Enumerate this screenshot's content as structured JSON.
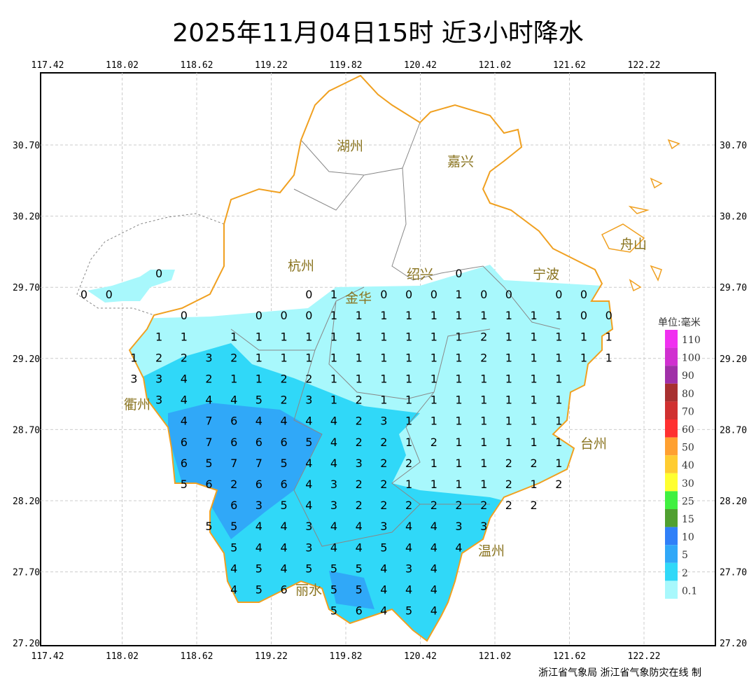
{
  "title": "2025年11月04日15时  近3小时降水",
  "footer": "浙江省气象局 浙江省气象防灾在线 制",
  "lon_ticks": [
    "117.42",
    "118.02",
    "118.62",
    "119.22",
    "119.82",
    "120.42",
    "121.02",
    "121.62",
    "122.22"
  ],
  "lat_ticks": [
    "30.70",
    "30.20",
    "29.70",
    "29.20",
    "28.70",
    "28.20",
    "27.70",
    "27.20"
  ],
  "legend": {
    "unit": "单位:毫米",
    "levels": [
      {
        "label": "110",
        "color": "#f030f0"
      },
      {
        "label": "100",
        "color": "#d030d0"
      },
      {
        "label": "90",
        "color": "#a030a8"
      },
      {
        "label": "80",
        "color": "#a83030"
      },
      {
        "label": "70",
        "color": "#d03030"
      },
      {
        "label": "60",
        "color": "#ff3030"
      },
      {
        "label": "50",
        "color": "#ffa030"
      },
      {
        "label": "40",
        "color": "#ffcc30"
      },
      {
        "label": "30",
        "color": "#ffff30"
      },
      {
        "label": "25",
        "color": "#40f040"
      },
      {
        "label": "15",
        "color": "#50a030"
      },
      {
        "label": "10",
        "color": "#3080f8"
      },
      {
        "label": "5",
        "color": "#30a8f8"
      },
      {
        "label": "2",
        "color": "#30d8f8"
      },
      {
        "label": "0.1",
        "color": "#a8f8fc"
      }
    ]
  },
  "cities": [
    "湖州",
    "嘉兴",
    "杭州",
    "绍兴",
    "宁波",
    "舟山",
    "衢州",
    "金华",
    "台州",
    "丽水",
    "温州"
  ],
  "grid_values": [
    [
      null,
      null,
      null,
      0,
      null,
      null,
      null,
      null,
      null,
      null,
      null,
      null,
      null,
      null,
      null,
      0,
      null,
      null,
      null,
      null,
      null,
      null
    ],
    [
      0,
      0,
      null,
      null,
      null,
      null,
      null,
      null,
      null,
      0,
      1,
      null,
      0,
      0,
      0,
      1,
      0,
      0,
      null,
      0,
      0,
      null
    ],
    [
      null,
      null,
      null,
      null,
      0,
      null,
      null,
      0,
      0,
      0,
      1,
      1,
      1,
      1,
      1,
      1,
      1,
      1,
      1,
      1,
      0,
      0
    ],
    [
      null,
      null,
      null,
      1,
      1,
      null,
      1,
      1,
      1,
      1,
      1,
      1,
      1,
      1,
      1,
      1,
      2,
      1,
      1,
      1,
      1,
      1
    ],
    [
      null,
      null,
      1,
      2,
      2,
      3,
      2,
      1,
      1,
      1,
      1,
      1,
      1,
      1,
      1,
      1,
      2,
      1,
      1,
      1,
      1,
      1
    ],
    [
      null,
      null,
      3,
      3,
      4,
      2,
      1,
      1,
      2,
      2,
      1,
      1,
      1,
      1,
      1,
      1,
      1,
      1,
      1,
      1,
      null,
      null
    ],
    [
      null,
      null,
      null,
      3,
      4,
      4,
      4,
      5,
      2,
      3,
      1,
      2,
      1,
      1,
      1,
      1,
      1,
      1,
      1,
      1,
      null,
      null
    ],
    [
      null,
      null,
      null,
      null,
      4,
      7,
      6,
      4,
      4,
      4,
      4,
      2,
      3,
      1,
      1,
      1,
      1,
      1,
      1,
      1,
      null,
      null
    ],
    [
      null,
      null,
      null,
      null,
      6,
      7,
      6,
      6,
      6,
      5,
      4,
      2,
      2,
      1,
      2,
      1,
      1,
      1,
      1,
      1,
      null,
      null
    ],
    [
      null,
      null,
      null,
      null,
      6,
      5,
      7,
      7,
      5,
      4,
      4,
      3,
      2,
      2,
      1,
      1,
      1,
      2,
      2,
      1,
      null,
      null
    ],
    [
      null,
      null,
      null,
      null,
      5,
      6,
      2,
      6,
      6,
      4,
      3,
      2,
      2,
      1,
      1,
      1,
      1,
      2,
      1,
      2,
      null,
      null
    ],
    [
      null,
      null,
      null,
      null,
      null,
      null,
      6,
      3,
      5,
      4,
      3,
      2,
      2,
      2,
      2,
      2,
      2,
      2,
      2,
      null,
      null,
      null
    ],
    [
      null,
      null,
      null,
      null,
      null,
      5,
      5,
      4,
      4,
      3,
      4,
      4,
      3,
      4,
      4,
      3,
      3,
      null,
      null,
      null,
      null,
      null
    ],
    [
      null,
      null,
      null,
      null,
      null,
      null,
      5,
      4,
      4,
      3,
      4,
      4,
      5,
      4,
      4,
      4,
      null,
      null,
      null,
      null,
      null,
      null
    ],
    [
      null,
      null,
      null,
      null,
      null,
      null,
      4,
      5,
      4,
      5,
      5,
      5,
      4,
      3,
      4,
      null,
      null,
      null,
      null,
      null,
      null,
      null
    ],
    [
      null,
      null,
      null,
      null,
      null,
      null,
      4,
      5,
      6,
      null,
      5,
      5,
      4,
      4,
      4,
      null,
      null,
      null,
      null,
      null,
      null,
      null
    ],
    [
      null,
      null,
      null,
      null,
      null,
      null,
      null,
      null,
      null,
      null,
      5,
      6,
      4,
      5,
      4,
      null,
      null,
      null,
      null,
      null,
      null,
      null
    ]
  ]
}
